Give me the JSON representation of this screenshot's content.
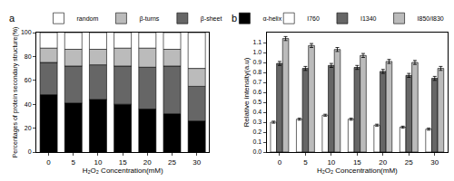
{
  "chart_data": [
    {
      "type": "bar",
      "panel_label": "a",
      "stacked": true,
      "legend": "top",
      "x_label": "H₂O₂ Concentration(mM)",
      "y_label": "Percentages of protein secondary structure(%)",
      "categories": [
        "0",
        "5",
        "10",
        "15",
        "20",
        "25",
        "30"
      ],
      "series": [
        {
          "name": "α-helix",
          "color": "#000000",
          "values": [
            48,
            41,
            44,
            40,
            36,
            32,
            26
          ]
        },
        {
          "name": "β-sheet",
          "color": "#666666",
          "values": [
            27,
            31,
            29,
            32,
            35,
            40,
            29
          ]
        },
        {
          "name": "β-turns",
          "color": "#bbbbbb",
          "values": [
            12,
            14,
            13,
            15,
            16,
            14,
            15
          ]
        },
        {
          "name": "random",
          "color": "#ffffff",
          "values": [
            13,
            14,
            14,
            13,
            13,
            14,
            30
          ]
        }
      ],
      "ylim": [
        0,
        100
      ],
      "yticks": [
        0,
        20,
        40,
        60,
        80,
        100
      ]
    },
    {
      "type": "bar",
      "panel_label": "b",
      "legend": "top",
      "x_label": "H₂O₂ Concentration(mM)",
      "y_label": "Relative intensity(a.u)",
      "categories": [
        "0",
        "5",
        "10",
        "15",
        "20",
        "25",
        "30"
      ],
      "series": [
        {
          "name": "I760",
          "color": "#ffffff",
          "values": [
            0.3,
            0.33,
            0.37,
            0.33,
            0.27,
            0.25,
            0.23
          ],
          "errors": [
            0.01,
            0.01,
            0.01,
            0.01,
            0.01,
            0.01,
            0.01
          ]
        },
        {
          "name": "I1340",
          "color": "#666666",
          "values": [
            0.89,
            0.84,
            0.87,
            0.85,
            0.81,
            0.77,
            0.74
          ],
          "errors": [
            0.02,
            0.02,
            0.02,
            0.02,
            0.02,
            0.02,
            0.02
          ]
        },
        {
          "name": "I850/I830",
          "color": "#bbbbbb",
          "values": [
            1.14,
            1.07,
            1.03,
            0.97,
            0.91,
            0.9,
            0.84
          ],
          "errors": [
            0.02,
            0.02,
            0.02,
            0.02,
            0.02,
            0.02,
            0.02
          ]
        }
      ],
      "ylim": [
        0,
        1.2
      ],
      "yticks": [
        {
          "value": 0,
          "label": "0.0"
        },
        0.1,
        0.2,
        0.3,
        0.4,
        0.5,
        0.6,
        0.7,
        0.8,
        0.9,
        {
          "value": 1,
          "label": "1.0"
        },
        1.1
      ]
    }
  ]
}
